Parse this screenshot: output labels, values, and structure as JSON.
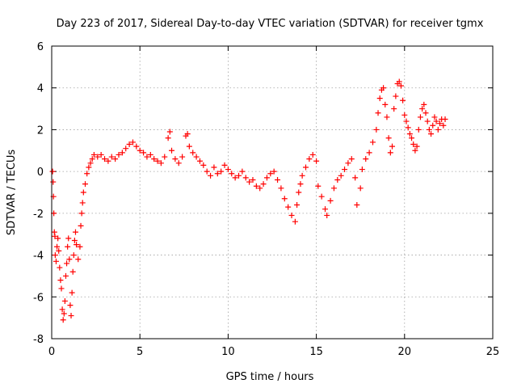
{
  "chart_data": {
    "type": "scatter",
    "title": "Day 223 of 2017, Sidereal Day-to-day VTEC variation (SDTVAR) for receiver tgmx",
    "xlabel": "GPS time / hours",
    "ylabel": "SDTVAR / TECUs",
    "xlim": [
      0,
      25
    ],
    "ylim": [
      -8,
      6
    ],
    "xticks": [
      "0",
      "5",
      "10",
      "15",
      "20",
      "25"
    ],
    "yticks": [
      "-8",
      "-6",
      "-4",
      "-2",
      "0",
      "2",
      "4",
      "6"
    ],
    "grid": true,
    "marker": "+",
    "series": [
      {
        "name": "SDTVAR",
        "color": "#ff0000",
        "points": [
          [
            0.05,
            0.0
          ],
          [
            0.08,
            -0.5
          ],
          [
            0.1,
            -1.2
          ],
          [
            0.12,
            -2.0
          ],
          [
            0.15,
            -2.9
          ],
          [
            0.18,
            -3.1
          ],
          [
            0.2,
            -4.0
          ],
          [
            0.25,
            -4.3
          ],
          [
            0.3,
            -3.6
          ],
          [
            0.35,
            -3.2
          ],
          [
            0.4,
            -3.8
          ],
          [
            0.45,
            -4.6
          ],
          [
            0.5,
            -5.2
          ],
          [
            0.55,
            -5.6
          ],
          [
            0.6,
            -6.6
          ],
          [
            0.65,
            -7.1
          ],
          [
            0.7,
            -6.8
          ],
          [
            0.75,
            -6.2
          ],
          [
            0.8,
            -5.0
          ],
          [
            0.85,
            -4.4
          ],
          [
            0.9,
            -3.6
          ],
          [
            0.95,
            -3.2
          ],
          [
            1.0,
            -4.2
          ],
          [
            1.05,
            -6.4
          ],
          [
            1.1,
            -6.9
          ],
          [
            1.15,
            -5.8
          ],
          [
            1.2,
            -4.8
          ],
          [
            1.25,
            -4.0
          ],
          [
            1.3,
            -3.3
          ],
          [
            1.35,
            -2.9
          ],
          [
            1.4,
            -3.5
          ],
          [
            1.5,
            -4.2
          ],
          [
            1.6,
            -3.6
          ],
          [
            1.65,
            -2.6
          ],
          [
            1.7,
            -2.0
          ],
          [
            1.75,
            -1.5
          ],
          [
            1.8,
            -1.0
          ],
          [
            1.9,
            -0.6
          ],
          [
            2.0,
            -0.1
          ],
          [
            2.1,
            0.2
          ],
          [
            2.2,
            0.4
          ],
          [
            2.3,
            0.6
          ],
          [
            2.4,
            0.8
          ],
          [
            2.6,
            0.7
          ],
          [
            2.8,
            0.8
          ],
          [
            3.0,
            0.6
          ],
          [
            3.2,
            0.5
          ],
          [
            3.4,
            0.7
          ],
          [
            3.6,
            0.6
          ],
          [
            3.8,
            0.8
          ],
          [
            4.0,
            0.9
          ],
          [
            4.2,
            1.1
          ],
          [
            4.4,
            1.3
          ],
          [
            4.6,
            1.4
          ],
          [
            4.8,
            1.2
          ],
          [
            5.0,
            1.0
          ],
          [
            5.2,
            0.9
          ],
          [
            5.4,
            0.7
          ],
          [
            5.6,
            0.8
          ],
          [
            5.8,
            0.6
          ],
          [
            6.0,
            0.5
          ],
          [
            6.2,
            0.4
          ],
          [
            6.4,
            0.7
          ],
          [
            6.6,
            1.6
          ],
          [
            6.7,
            1.9
          ],
          [
            6.8,
            1.0
          ],
          [
            7.0,
            0.6
          ],
          [
            7.2,
            0.4
          ],
          [
            7.4,
            0.7
          ],
          [
            7.6,
            1.7
          ],
          [
            7.7,
            1.8
          ],
          [
            7.8,
            1.2
          ],
          [
            8.0,
            0.9
          ],
          [
            8.2,
            0.7
          ],
          [
            8.4,
            0.5
          ],
          [
            8.6,
            0.3
          ],
          [
            8.8,
            0.0
          ],
          [
            9.0,
            -0.2
          ],
          [
            9.2,
            0.2
          ],
          [
            9.4,
            -0.1
          ],
          [
            9.6,
            0.0
          ],
          [
            9.8,
            0.3
          ],
          [
            10.0,
            0.1
          ],
          [
            10.2,
            -0.1
          ],
          [
            10.4,
            -0.3
          ],
          [
            10.6,
            -0.2
          ],
          [
            10.8,
            0.0
          ],
          [
            11.0,
            -0.3
          ],
          [
            11.2,
            -0.5
          ],
          [
            11.4,
            -0.4
          ],
          [
            11.6,
            -0.7
          ],
          [
            11.8,
            -0.8
          ],
          [
            12.0,
            -0.6
          ],
          [
            12.2,
            -0.3
          ],
          [
            12.4,
            -0.1
          ],
          [
            12.6,
            0.0
          ],
          [
            12.8,
            -0.4
          ],
          [
            13.0,
            -0.8
          ],
          [
            13.2,
            -1.3
          ],
          [
            13.4,
            -1.7
          ],
          [
            13.6,
            -2.1
          ],
          [
            13.8,
            -2.4
          ],
          [
            13.9,
            -1.6
          ],
          [
            14.0,
            -1.0
          ],
          [
            14.1,
            -0.6
          ],
          [
            14.2,
            -0.2
          ],
          [
            14.4,
            0.2
          ],
          [
            14.6,
            0.6
          ],
          [
            14.8,
            0.8
          ],
          [
            15.0,
            0.5
          ],
          [
            15.1,
            -0.7
          ],
          [
            15.3,
            -1.2
          ],
          [
            15.5,
            -1.8
          ],
          [
            15.6,
            -2.1
          ],
          [
            15.8,
            -1.4
          ],
          [
            16.0,
            -0.8
          ],
          [
            16.2,
            -0.4
          ],
          [
            16.4,
            -0.2
          ],
          [
            16.6,
            0.1
          ],
          [
            16.8,
            0.4
          ],
          [
            17.0,
            0.6
          ],
          [
            17.2,
            -0.3
          ],
          [
            17.3,
            -1.6
          ],
          [
            17.5,
            -0.8
          ],
          [
            17.6,
            0.1
          ],
          [
            17.8,
            0.6
          ],
          [
            18.0,
            0.9
          ],
          [
            18.2,
            1.4
          ],
          [
            18.4,
            2.0
          ],
          [
            18.5,
            2.8
          ],
          [
            18.6,
            3.5
          ],
          [
            18.7,
            3.9
          ],
          [
            18.8,
            4.0
          ],
          [
            18.9,
            3.2
          ],
          [
            19.0,
            2.6
          ],
          [
            19.1,
            1.6
          ],
          [
            19.2,
            0.9
          ],
          [
            19.3,
            1.2
          ],
          [
            19.4,
            3.0
          ],
          [
            19.5,
            3.6
          ],
          [
            19.6,
            4.2
          ],
          [
            19.7,
            4.3
          ],
          [
            19.8,
            4.1
          ],
          [
            19.9,
            3.4
          ],
          [
            20.0,
            2.7
          ],
          [
            20.1,
            2.4
          ],
          [
            20.2,
            2.1
          ],
          [
            20.3,
            1.8
          ],
          [
            20.4,
            1.6
          ],
          [
            20.5,
            1.3
          ],
          [
            20.6,
            1.0
          ],
          [
            20.7,
            1.2
          ],
          [
            20.8,
            2.0
          ],
          [
            20.9,
            2.6
          ],
          [
            21.0,
            3.0
          ],
          [
            21.1,
            3.2
          ],
          [
            21.2,
            2.8
          ],
          [
            21.3,
            2.4
          ],
          [
            21.4,
            2.0
          ],
          [
            21.5,
            1.8
          ],
          [
            21.6,
            2.2
          ],
          [
            21.7,
            2.6
          ],
          [
            21.8,
            2.4
          ],
          [
            21.9,
            2.0
          ],
          [
            22.0,
            2.3
          ],
          [
            22.1,
            2.5
          ],
          [
            22.2,
            2.2
          ],
          [
            22.3,
            2.5
          ]
        ]
      }
    ]
  }
}
